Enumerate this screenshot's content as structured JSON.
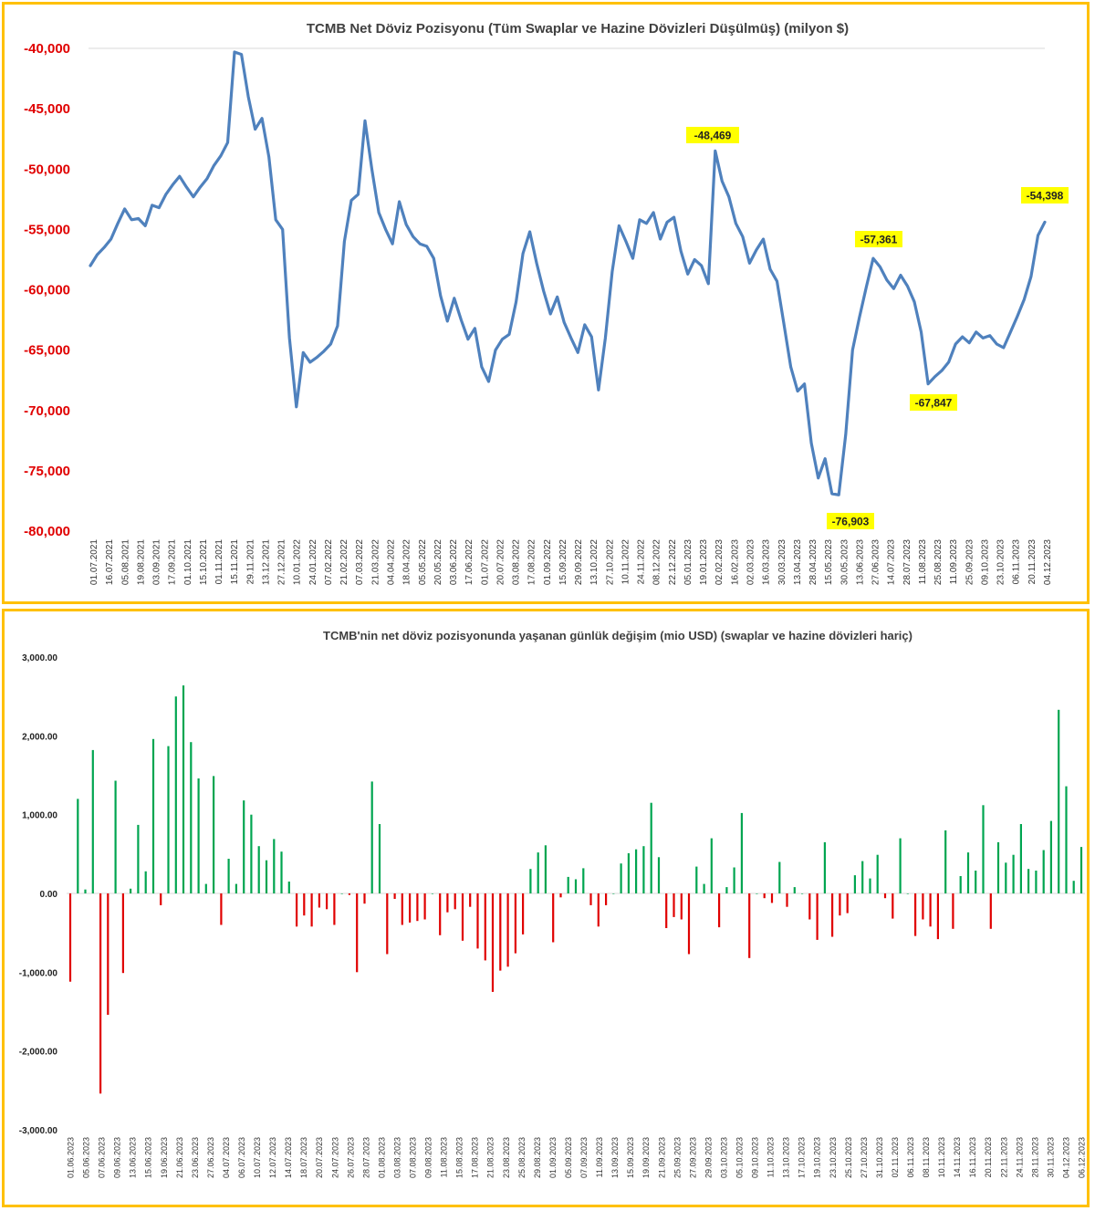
{
  "colors": {
    "border": "#FFC000",
    "line": "#4F81BD",
    "positive_bar": "#00A550",
    "negative_bar": "#E00000",
    "highlight": "#FFFF00",
    "y_tick_top": "#E00000"
  },
  "chart_data": [
    {
      "type": "line",
      "title": "TCMB Net Döviz Pozisyonu (Tüm Swaplar ve Hazine Dövizleri Düşülmüş) (milyon $)",
      "ylim": [
        -80000,
        -40000
      ],
      "y_ticks": [
        -40000,
        -45000,
        -50000,
        -55000,
        -60000,
        -65000,
        -70000,
        -75000,
        -80000
      ],
      "y_tick_labels": [
        "-40,000",
        "-45,000",
        "-50,000",
        "-55,000",
        "-60,000",
        "-65,000",
        "-70,000",
        "-75,000",
        "-80,000"
      ],
      "x_tick_labels": [
        "01.07.2021",
        "16.07.2021",
        "05.08.2021",
        "19.08.2021",
        "03.09.2021",
        "17.09.2021",
        "01.10.2021",
        "15.10.2021",
        "01.11.2021",
        "15.11.2021",
        "29.11.2021",
        "13.12.2021",
        "27.12.2021",
        "10.01.2022",
        "24.01.2022",
        "07.02.2022",
        "21.02.2022",
        "07.03.2022",
        "21.03.2022",
        "04.04.2022",
        "18.04.2022",
        "05.05.2022",
        "20.05.2022",
        "03.06.2022",
        "17.06.2022",
        "01.07.2022",
        "20.07.2022",
        "03.08.2022",
        "17.08.2022",
        "01.09.2022",
        "15.09.2022",
        "29.09.2022",
        "13.10.2022",
        "27.10.2022",
        "10.11.2022",
        "24.11.2022",
        "08.12.2022",
        "22.12.2022",
        "05.01.2023",
        "19.01.2023",
        "02.02.2023",
        "16.02.2023",
        "02.03.2023",
        "16.03.2023",
        "30.03.2023",
        "13.04.2023",
        "28.04.2023",
        "15.05.2023",
        "30.05.2023",
        "13.06.2023",
        "27.06.2023",
        "14.07.2023",
        "28.07.2023",
        "11.08.2023",
        "25.08.2023",
        "11.09.2023",
        "25.09.2023",
        "09.10.2023",
        "23.10.2023",
        "06.11.2023",
        "20.11.2023",
        "04.12.2023"
      ],
      "series": [
        {
          "values": [
            -58000,
            -57100,
            -56500,
            -55800,
            -54500,
            -53300,
            -54200,
            -54100,
            -54700,
            -53000,
            -53200,
            -52100,
            -51300,
            -50600,
            -51500,
            -52300,
            -51500,
            -50800,
            -49700,
            -48900,
            -47800,
            -40300,
            -40500,
            -44000,
            -46700,
            -45800,
            -49000,
            -54200,
            -55000,
            -64000,
            -69700,
            -65200,
            -66000,
            -65600,
            -65100,
            -64500,
            -63000,
            -56000,
            -52600,
            -52100,
            -46000,
            -50000,
            -53600,
            -55000,
            -56200,
            -52700,
            -54600,
            -55600,
            -56200,
            -56400,
            -57400,
            -60500,
            -62600,
            -60700,
            -62500,
            -64100,
            -63200,
            -66400,
            -67600,
            -65000,
            -64100,
            -63700,
            -61000,
            -57000,
            -55200,
            -57800,
            -60100,
            -62000,
            -60600,
            -62700,
            -64000,
            -65200,
            -62900,
            -63900,
            -68300,
            -64000,
            -58500,
            -54700,
            -56000,
            -57400,
            -54200,
            -54500,
            -53600,
            -55800,
            -54400,
            -54000,
            -56800,
            -58700,
            -57500,
            -58000,
            -59500,
            -48500,
            -51000,
            -52300,
            -54500,
            -55600,
            -57800,
            -56700,
            -55800,
            -58300,
            -59300,
            -62800,
            -66400,
            -68400,
            -67800,
            -72700,
            -75600,
            -74000,
            -76900,
            -77000,
            -72000,
            -65000,
            -62300,
            -59800,
            -57400,
            -58100,
            -59200,
            -59900,
            -58800,
            -59700,
            -61000,
            -63500,
            -67800,
            -67200,
            -66700,
            -66000,
            -64500,
            -63900,
            -64400,
            -63500,
            -64000,
            -63800,
            -64500,
            -64800,
            -63500,
            -62200,
            -60800,
            -58900,
            -55500,
            -54398
          ]
        }
      ],
      "annotations": [
        {
          "label": "-48,469",
          "value": -48469
        },
        {
          "label": "-57,361",
          "value": -57361
        },
        {
          "label": "-54,398",
          "value": -54398
        },
        {
          "label": "-67,847",
          "value": -67847
        },
        {
          "label": "-76,903",
          "value": -76903
        }
      ]
    },
    {
      "type": "bar",
      "title": "TCMB'nin net döviz pozisyonunda yaşanan günlük değişim (mio USD) (swaplar ve hazine dövizleri hariç)",
      "ylim": [
        -3000,
        3000
      ],
      "y_ticks": [
        3000,
        2000,
        1000,
        0,
        -1000,
        -2000,
        -3000
      ],
      "y_tick_labels": [
        "3,000.00",
        "2,000.00",
        "1,000.00",
        "0.00",
        "-1,000.00",
        "-2,000.00",
        "-3,000.00"
      ],
      "x_tick_labels": [
        "01.06.2023",
        "05.06.2023",
        "07.06.2023",
        "09.06.2023",
        "13.06.2023",
        "15.06.2023",
        "19.06.2023",
        "21.06.2023",
        "23.06.2023",
        "27.06.2023",
        "04.07.2023",
        "06.07.2023",
        "10.07.2023",
        "12.07.2023",
        "14.07.2023",
        "18.07.2023",
        "20.07.2023",
        "24.07.2023",
        "26.07.2023",
        "28.07.2023",
        "01.08.2023",
        "03.08.2023",
        "07.08.2023",
        "09.08.2023",
        "11.08.2023",
        "15.08.2023",
        "17.08.2023",
        "21.08.2023",
        "23.08.2023",
        "25.08.2023",
        "29.08.2023",
        "01.09.2023",
        "05.09.2023",
        "07.09.2023",
        "11.09.2023",
        "13.09.2023",
        "15.09.2023",
        "19.09.2023",
        "21.09.2023",
        "25.09.2023",
        "27.09.2023",
        "29.09.2023",
        "03.10.2023",
        "05.10.2023",
        "09.10.2023",
        "11.10.2023",
        "13.10.2023",
        "17.10.2023",
        "19.10.2023",
        "23.10.2023",
        "25.10.2023",
        "27.10.2023",
        "31.10.2023",
        "02.11.2023",
        "06.11.2023",
        "08.11.2023",
        "10.11.2023",
        "14.11.2023",
        "16.11.2023",
        "20.11.2023",
        "22.11.2023",
        "24.11.2023",
        "28.11.2023",
        "30.11.2023",
        "04.12.2023",
        "06.12.2023"
      ],
      "values": [
        -1120,
        1200,
        50,
        1820,
        -2540,
        -1540,
        1430,
        -1010,
        60,
        870,
        280,
        1960,
        -150,
        1870,
        2500,
        2640,
        1920,
        1460,
        120,
        1490,
        -400,
        440,
        120,
        1180,
        1000,
        600,
        420,
        690,
        530,
        150,
        -420,
        -280,
        -420,
        -180,
        -200,
        -400,
        0,
        -20,
        -1000,
        -130,
        1420,
        880,
        -770,
        -70,
        -400,
        -370,
        -350,
        -330,
        0,
        -530,
        -240,
        -200,
        -600,
        -170,
        -700,
        -850,
        -1250,
        -980,
        -930,
        -760,
        -520,
        310,
        520,
        610,
        -620,
        -50,
        210,
        180,
        320,
        -150,
        -420,
        -150,
        0,
        380,
        510,
        560,
        600,
        1150,
        460,
        -440,
        -300,
        -330,
        -770,
        340,
        120,
        700,
        -430,
        80,
        330,
        1020,
        -820,
        0,
        -60,
        -120,
        400,
        -170,
        80,
        0,
        -330,
        -590,
        650,
        -550,
        -280,
        -250,
        230,
        410,
        190,
        490,
        -60,
        -320,
        700,
        0,
        -540,
        -330,
        -420,
        -580,
        800,
        -450,
        220,
        520,
        290,
        1120,
        -450,
        650,
        390,
        490,
        880,
        310,
        290,
        550,
        920,
        2330,
        1360,
        160,
        590
      ]
    }
  ]
}
